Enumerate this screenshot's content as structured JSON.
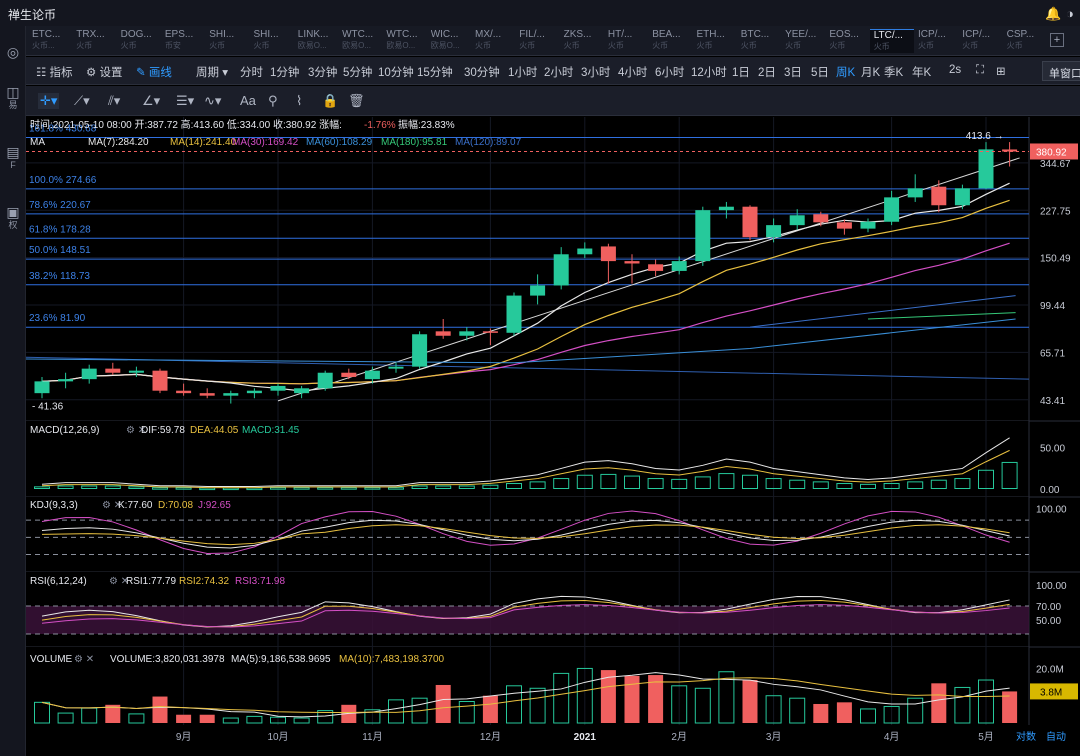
{
  "app": {
    "title": "禅生论币",
    "bell_icon": "bell-icon",
    "menu_icon": "circle-menu-icon"
  },
  "sidebar": {
    "items": [
      {
        "glyph": "◫",
        "label": "易"
      },
      {
        "glyph": "▤",
        "label": "F"
      },
      {
        "glyph": "▣",
        "label": "权"
      }
    ]
  },
  "tabs": [
    {
      "symbol": "ETC...",
      "sub": "火币..."
    },
    {
      "symbol": "TRX...",
      "sub": "火币"
    },
    {
      "symbol": "DOG...",
      "sub": "火币"
    },
    {
      "symbol": "EPS...",
      "sub": "币安"
    },
    {
      "symbol": "SHI...",
      "sub": "火币"
    },
    {
      "symbol": "SHI...",
      "sub": "火币"
    },
    {
      "symbol": "LINK...",
      "sub": "欧易O..."
    },
    {
      "symbol": "WTC...",
      "sub": "欧易O..."
    },
    {
      "symbol": "WTC...",
      "sub": "欧易O..."
    },
    {
      "symbol": "WIC...",
      "sub": "欧易O..."
    },
    {
      "symbol": "MX/...",
      "sub": "火币"
    },
    {
      "symbol": "FIL/...",
      "sub": "火币"
    },
    {
      "symbol": "ZKS...",
      "sub": "火币"
    },
    {
      "symbol": "HT/...",
      "sub": "火币"
    },
    {
      "symbol": "BEA...",
      "sub": "火币"
    },
    {
      "symbol": "ETH...",
      "sub": "火币"
    },
    {
      "symbol": "BTC...",
      "sub": "火币"
    },
    {
      "symbol": "YEE/...",
      "sub": "火币"
    },
    {
      "symbol": "EOS...",
      "sub": "火币"
    },
    {
      "symbol": "LTC/...",
      "sub": "火币"
    },
    {
      "symbol": "ICP/...",
      "sub": "火币"
    },
    {
      "symbol": "ICP/...",
      "sub": "火币"
    },
    {
      "symbol": "CSP...",
      "sub": "火币"
    }
  ],
  "active_tab": 19,
  "toolbar": {
    "indicator": "指标",
    "settings": "设置",
    "draw": "画线",
    "period": "周期",
    "periods": [
      "分时",
      "1分钟",
      "3分钟",
      "5分钟",
      "10分钟",
      "15分钟",
      "30分钟",
      "1小时",
      "2小时",
      "3小时",
      "4小时",
      "6小时",
      "12小时",
      "1日",
      "2日",
      "3日",
      "5日",
      "周K",
      "月K",
      "季K",
      "年K",
      "2s"
    ],
    "active_period": "周K",
    "window_mode": "单窗口"
  },
  "draw_tools": [
    "crosshair-icon",
    "trendline-icon",
    "parallel-icon",
    "angle-icon",
    "fib-icon",
    "wave-icon",
    "text-icon",
    "ruler-icon",
    "pattern-icon",
    "lock-icon",
    "trash-icon"
  ],
  "draw_tool_text": "Aa",
  "info_bar": {
    "time": "时间:2021-05-10 08:00",
    "open": "开:387.72",
    "high": "高:413.60",
    "low": "低:334.00",
    "close": "收:380.92",
    "change_label": "涨幅:",
    "change": "-1.76%",
    "amplitude": "振幅:23.83%"
  },
  "ma_legend": {
    "name": "MA",
    "ma7": "MA(7):284.20",
    "ma14": "MA(14):241.40",
    "ma30": "MA(30):169.42",
    "ma60": "MA(60):108.29",
    "ma180": "MA(180):95.81",
    "ma120": "MA(120):89.07"
  },
  "fib_levels": [
    {
      "label": "161.8% 430.68",
      "price": 430.68
    },
    {
      "label": "100.0% 274.66",
      "price": 274.66
    },
    {
      "label": "78.6% 220.67",
      "price": 220.67
    },
    {
      "label": "61.8% 178.28",
      "price": 178.28
    },
    {
      "label": "50.0% 148.51",
      "price": 148.51
    },
    {
      "label": "38.2% 118.73",
      "price": 118.73
    },
    {
      "label": "23.6% 81.90",
      "price": 81.9
    }
  ],
  "low_marker": "41.36",
  "high_marker": "413.6",
  "last_price": "380.92",
  "macd_legend": {
    "name": "MACD(12,26,9)",
    "dif": "DIF:59.78",
    "dea": "DEA:44.05",
    "macd": "MACD:31.45"
  },
  "kdj_legend": {
    "name": "KDJ(9,3,3)",
    "k": "K:77.60",
    "d": "D:70.08",
    "j": "J:92.65"
  },
  "rsi_legend": {
    "name": "RSI(6,12,24)",
    "r1": "RSI1:77.79",
    "r2": "RSI2:74.32",
    "r3": "RSI3:71.98"
  },
  "vol_legend": {
    "name": "VOLUME",
    "volume": "VOLUME:3,820,031.3978",
    "ma5": "MA(5):9,186,538.9695",
    "ma10": "MA(10):7,483,198.3700"
  },
  "bottom_controls": {
    "log": "对数",
    "auto": "自动"
  },
  "colors": {
    "up": "#26c99b",
    "down": "#f0605f",
    "fib": "#2f6fe0",
    "ma7": "#e8e8e8",
    "ma14": "#e8c040",
    "ma30": "#d44fc5",
    "ma60": "#3a8fd8",
    "ma180": "#35c878",
    "ma120": "#3a6fc8"
  },
  "chart_data": {
    "type": "candlestick",
    "period": "weekly",
    "price_scale": "log",
    "price_ticks": [
      43.41,
      65.71,
      99.44,
      150.49,
      227.75,
      344.67
    ],
    "x_ticks": [
      {
        "label": "9月",
        "week": 6
      },
      {
        "label": "10月",
        "week": 10
      },
      {
        "label": "11月",
        "week": 14
      },
      {
        "label": "12月",
        "week": 19
      },
      {
        "label": "2021",
        "week": 23
      },
      {
        "label": "2月",
        "week": 27
      },
      {
        "label": "3月",
        "week": 31
      },
      {
        "label": "4月",
        "week": 36
      },
      {
        "label": "5月",
        "week": 40
      }
    ],
    "candles": [
      {
        "o": 46,
        "h": 53,
        "l": 44,
        "c": 51
      },
      {
        "o": 51,
        "h": 55,
        "l": 48,
        "c": 52
      },
      {
        "o": 52,
        "h": 59,
        "l": 50,
        "c": 57
      },
      {
        "o": 57,
        "h": 60,
        "l": 54,
        "c": 55
      },
      {
        "o": 55,
        "h": 58,
        "l": 53,
        "c": 56
      },
      {
        "o": 56,
        "h": 57,
        "l": 46,
        "c": 47
      },
      {
        "o": 47,
        "h": 50,
        "l": 45,
        "c": 46
      },
      {
        "o": 46,
        "h": 48,
        "l": 44,
        "c": 45
      },
      {
        "o": 45,
        "h": 47,
        "l": 42,
        "c": 46
      },
      {
        "o": 46,
        "h": 48,
        "l": 44,
        "c": 47
      },
      {
        "o": 47,
        "h": 50,
        "l": 45,
        "c": 49
      },
      {
        "o": 46,
        "h": 49,
        "l": 44,
        "c": 48
      },
      {
        "o": 48,
        "h": 56,
        "l": 47,
        "c": 55
      },
      {
        "o": 55,
        "h": 57,
        "l": 52,
        "c": 53
      },
      {
        "o": 52,
        "h": 58,
        "l": 50,
        "c": 56
      },
      {
        "o": 57,
        "h": 60,
        "l": 55,
        "c": 58
      },
      {
        "o": 58,
        "h": 79,
        "l": 57,
        "c": 77
      },
      {
        "o": 79,
        "h": 88,
        "l": 74,
        "c": 76
      },
      {
        "o": 76,
        "h": 82,
        "l": 73,
        "c": 79
      },
      {
        "o": 79,
        "h": 81,
        "l": 70,
        "c": 78
      },
      {
        "o": 78,
        "h": 111,
        "l": 76,
        "c": 108
      },
      {
        "o": 108,
        "h": 130,
        "l": 100,
        "c": 118
      },
      {
        "o": 118,
        "h": 165,
        "l": 114,
        "c": 155
      },
      {
        "o": 155,
        "h": 172,
        "l": 150,
        "c": 163
      },
      {
        "o": 166,
        "h": 170,
        "l": 120,
        "c": 146
      },
      {
        "o": 146,
        "h": 155,
        "l": 120,
        "c": 143
      },
      {
        "o": 142,
        "h": 148,
        "l": 128,
        "c": 134
      },
      {
        "o": 134,
        "h": 152,
        "l": 130,
        "c": 146
      },
      {
        "o": 146,
        "h": 235,
        "l": 140,
        "c": 228
      },
      {
        "o": 228,
        "h": 245,
        "l": 212,
        "c": 235
      },
      {
        "o": 235,
        "h": 238,
        "l": 175,
        "c": 180
      },
      {
        "o": 180,
        "h": 212,
        "l": 172,
        "c": 200
      },
      {
        "o": 200,
        "h": 230,
        "l": 192,
        "c": 218
      },
      {
        "o": 220,
        "h": 225,
        "l": 198,
        "c": 205
      },
      {
        "o": 205,
        "h": 210,
        "l": 184,
        "c": 194
      },
      {
        "o": 194,
        "h": 212,
        "l": 188,
        "c": 206
      },
      {
        "o": 206,
        "h": 270,
        "l": 200,
        "c": 255
      },
      {
        "o": 255,
        "h": 312,
        "l": 245,
        "c": 276
      },
      {
        "o": 280,
        "h": 296,
        "l": 224,
        "c": 238
      },
      {
        "o": 238,
        "h": 285,
        "l": 230,
        "c": 276
      },
      {
        "o": 276,
        "h": 413.6,
        "l": 274,
        "c": 388
      },
      {
        "o": 387.72,
        "h": 413.6,
        "l": 334.0,
        "c": 380.92
      }
    ],
    "macd_hist": [
      2,
      3,
      3,
      3,
      2,
      1,
      1,
      0.5,
      0.5,
      0.5,
      1,
      1,
      1,
      1,
      1,
      1,
      3,
      3,
      3,
      4,
      6,
      8,
      12,
      16,
      17,
      15,
      12,
      11,
      14,
      18,
      16,
      12,
      10,
      8,
      6,
      5,
      6,
      8,
      10,
      12,
      22,
      31.45
    ],
    "macd_ticks": [
      0.0,
      50.0
    ],
    "kdj_ticks": [
      100.0
    ],
    "rsi_ticks": [
      50.0,
      70.0,
      100.0
    ],
    "volume": [
      2.5,
      1.2,
      1.8,
      2.2,
      1.1,
      3.2,
      1.0,
      1.0,
      0.6,
      0.8,
      0.7,
      0.6,
      1.5,
      2.2,
      1.6,
      2.8,
      3.0,
      4.6,
      2.6,
      3.3,
      4.5,
      4.2,
      6.0,
      6.6,
      6.4,
      5.7,
      5.8,
      4.5,
      4.2,
      6.2,
      5.2,
      3.3,
      3.0,
      2.3,
      2.5,
      1.7,
      2.0,
      3.0,
      4.8,
      4.3,
      5.2,
      3.82
    ],
    "volume_ticks": [
      20.0
    ],
    "volume_badge": "3.8M"
  }
}
